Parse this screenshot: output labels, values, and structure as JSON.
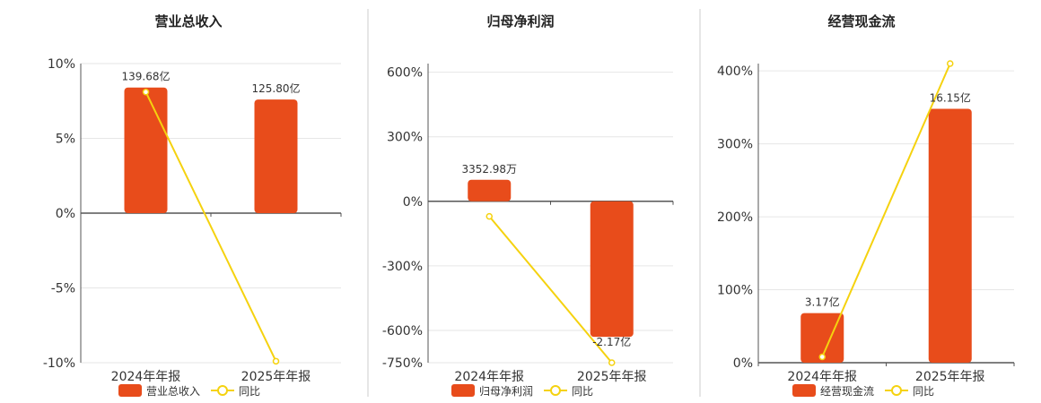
{
  "colors": {
    "bar": "#E84C1B",
    "line": "#F5D20F",
    "grid": "#E6E6E6",
    "axis": "#555555",
    "divider": "#CCCCCC"
  },
  "chart_data": [
    {
      "type": "bar",
      "title": "营业总收入",
      "categories": [
        "2024年年报",
        "2025年年报"
      ],
      "series": [
        {
          "name": "营业总收入",
          "type": "bar",
          "values": [
            8.4,
            7.6
          ],
          "labels": [
            "139.68亿",
            "125.80亿"
          ]
        },
        {
          "name": "同比",
          "type": "line",
          "values": [
            8.1,
            -9.9
          ]
        }
      ],
      "yticks": [
        "10%",
        "5%",
        "0%",
        "-5%",
        "-10%"
      ],
      "ylim": [
        -10,
        10
      ]
    },
    {
      "type": "bar",
      "title": "归母净利润",
      "categories": [
        "2024年年报",
        "2025年年报"
      ],
      "series": [
        {
          "name": "归母净利润",
          "type": "bar",
          "values": [
            100,
            -630
          ],
          "labels": [
            "3352.98万",
            "-2.17亿"
          ]
        },
        {
          "name": "同比",
          "type": "line",
          "values": [
            -70,
            -750
          ]
        }
      ],
      "yticks": [
        "600%",
        "300%",
        "0%",
        "-300%",
        "-600%",
        "-750%"
      ],
      "ylim": [
        -750,
        640
      ]
    },
    {
      "type": "bar",
      "title": "经营现金流",
      "categories": [
        "2024年年报",
        "2025年年报"
      ],
      "series": [
        {
          "name": "经营现金流",
          "type": "bar",
          "values": [
            68,
            348
          ],
          "labels": [
            "3.17亿",
            "16.15亿"
          ]
        },
        {
          "name": "同比",
          "type": "line",
          "values": [
            8,
            410
          ]
        }
      ],
      "yticks": [
        "400%",
        "300%",
        "200%",
        "100%",
        "0%"
      ],
      "ylim": [
        0,
        410
      ]
    }
  ]
}
